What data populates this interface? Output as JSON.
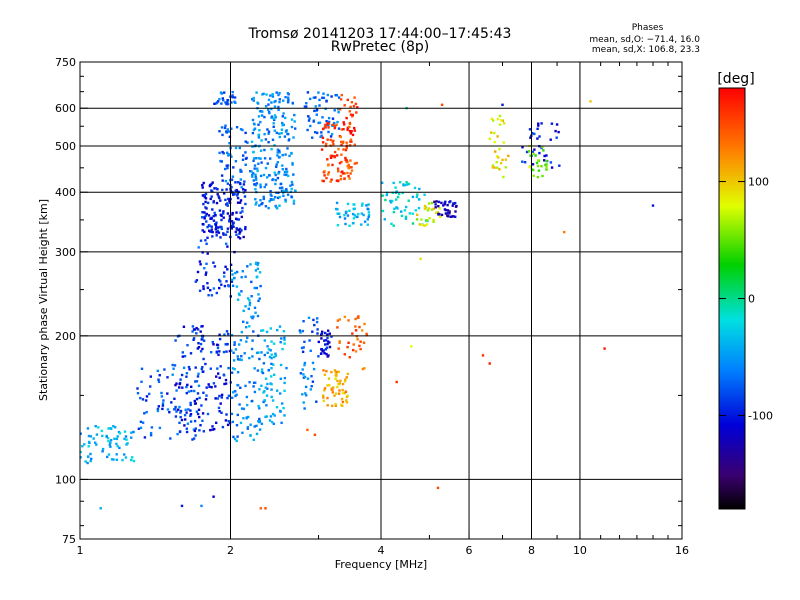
{
  "header": {
    "title_line1": "Tromsø 20141203 17:44:00–17:45:43",
    "title_line2": "RwPretec (8p)"
  },
  "stats": {
    "heading": "Phases",
    "o_line": "mean, sd,O: −71.4, 16.0",
    "x_line": "mean, sd,X: 106.8, 23.3"
  },
  "chart_data": {
    "type": "scatter",
    "xlabel": "Frequency [MHz]",
    "ylabel": "Stationary phase Virtual Height [km]",
    "xscale": "log",
    "yscale": "log",
    "xlim": [
      1,
      16
    ],
    "ylim": [
      75,
      750
    ],
    "xticks": [
      1,
      2,
      4,
      6,
      8,
      10,
      16
    ],
    "yticks": [
      75,
      100,
      200,
      300,
      400,
      500,
      600,
      750
    ],
    "xgrid": [
      2,
      4,
      6,
      8,
      10
    ],
    "ygrid": [
      100,
      200,
      300,
      400,
      500,
      600
    ],
    "grid": true,
    "colorbar": {
      "label": "[deg]",
      "range": [
        -180,
        180
      ],
      "ticks": [
        -100,
        0,
        100
      ]
    },
    "clusters": [
      {
        "f": [
          1.0,
          1.3
        ],
        "h": [
          108,
          130
        ],
        "phase": -40,
        "n": 70
      },
      {
        "f": [
          1.3,
          1.75
        ],
        "h": [
          120,
          175
        ],
        "phase": -80,
        "n": 90
      },
      {
        "f": [
          1.55,
          2.0
        ],
        "h": [
          125,
          210
        ],
        "phase": -95,
        "n": 140
      },
      {
        "f": [
          1.7,
          2.05
        ],
        "h": [
          240,
          320
        ],
        "phase": -85,
        "n": 45
      },
      {
        "f": [
          1.75,
          2.15
        ],
        "h": [
          320,
          420
        ],
        "phase": -100,
        "n": 170
      },
      {
        "f": [
          1.9,
          2.2
        ],
        "h": [
          400,
          560
        ],
        "phase": -70,
        "n": 60
      },
      {
        "f": [
          1.85,
          2.05
        ],
        "h": [
          610,
          650
        ],
        "phase": -75,
        "n": 25
      },
      {
        "f": [
          2.0,
          2.3
        ],
        "h": [
          120,
          290
        ],
        "phase": -55,
        "n": 140
      },
      {
        "f": [
          2.2,
          2.7
        ],
        "h": [
          370,
          650
        ],
        "phase": -55,
        "n": 240
      },
      {
        "f": [
          2.3,
          2.6
        ],
        "h": [
          130,
          210
        ],
        "phase": -45,
        "n": 80
      },
      {
        "f": [
          2.75,
          3.0
        ],
        "h": [
          140,
          220
        ],
        "phase": -70,
        "n": 40
      },
      {
        "f": [
          3.0,
          3.2
        ],
        "h": [
          180,
          205
        ],
        "phase": -100,
        "n": 30
      },
      {
        "f": [
          3.05,
          3.45
        ],
        "h": [
          140,
          170
        ],
        "phase": 110,
        "n": 60
      },
      {
        "f": [
          3.25,
          3.75
        ],
        "h": [
          170,
          220
        ],
        "phase": 140,
        "n": 35
      },
      {
        "f": [
          2.8,
          3.3
        ],
        "h": [
          520,
          650
        ],
        "phase": -70,
        "n": 60
      },
      {
        "f": [
          3.05,
          3.5
        ],
        "h": [
          420,
          560
        ],
        "phase": 150,
        "n": 90
      },
      {
        "f": [
          3.3,
          3.6
        ],
        "h": [
          450,
          640
        ],
        "phase": 165,
        "n": 40
      },
      {
        "f": [
          3.25,
          3.8
        ],
        "h": [
          340,
          380
        ],
        "phase": -40,
        "n": 45
      },
      {
        "f": [
          4.0,
          5.0
        ],
        "h": [
          340,
          420
        ],
        "phase": -20,
        "n": 55
      },
      {
        "f": [
          4.7,
          5.3
        ],
        "h": [
          340,
          380
        ],
        "phase": 80,
        "n": 25
      },
      {
        "f": [
          5.1,
          5.7
        ],
        "h": [
          355,
          385
        ],
        "phase": -120,
        "n": 40
      },
      {
        "f": [
          6.6,
          7.2
        ],
        "h": [
          430,
          580
        ],
        "phase": 90,
        "n": 30
      },
      {
        "f": [
          7.6,
          9.1
        ],
        "h": [
          450,
          560
        ],
        "phase": -100,
        "n": 35
      },
      {
        "f": [
          7.9,
          8.6
        ],
        "h": [
          430,
          500
        ],
        "phase": 60,
        "n": 25
      }
    ],
    "points": [
      {
        "f": 1.1,
        "h": 87,
        "phase": -40
      },
      {
        "f": 1.6,
        "h": 88,
        "phase": -100
      },
      {
        "f": 1.75,
        "h": 88,
        "phase": -60
      },
      {
        "f": 1.85,
        "h": 92,
        "phase": -110
      },
      {
        "f": 2.3,
        "h": 87,
        "phase": 140
      },
      {
        "f": 2.35,
        "h": 87,
        "phase": 150
      },
      {
        "f": 5.2,
        "h": 96,
        "phase": 150
      },
      {
        "f": 2.85,
        "h": 127,
        "phase": 140
      },
      {
        "f": 2.95,
        "h": 124,
        "phase": 150
      },
      {
        "f": 6.4,
        "h": 182,
        "phase": 160
      },
      {
        "f": 6.6,
        "h": 175,
        "phase": 170
      },
      {
        "f": 11.2,
        "h": 188,
        "phase": 170
      },
      {
        "f": 10.5,
        "h": 620,
        "phase": 100
      },
      {
        "f": 14.0,
        "h": 375,
        "phase": -100
      },
      {
        "f": 5.3,
        "h": 610,
        "phase": 150
      },
      {
        "f": 4.5,
        "h": 600,
        "phase": 0
      },
      {
        "f": 7.0,
        "h": 610,
        "phase": -100
      },
      {
        "f": 9.3,
        "h": 330,
        "phase": 130
      },
      {
        "f": 4.8,
        "h": 290,
        "phase": 90
      },
      {
        "f": 4.3,
        "h": 160,
        "phase": 160
      },
      {
        "f": 4.6,
        "h": 190,
        "phase": 80
      }
    ]
  }
}
